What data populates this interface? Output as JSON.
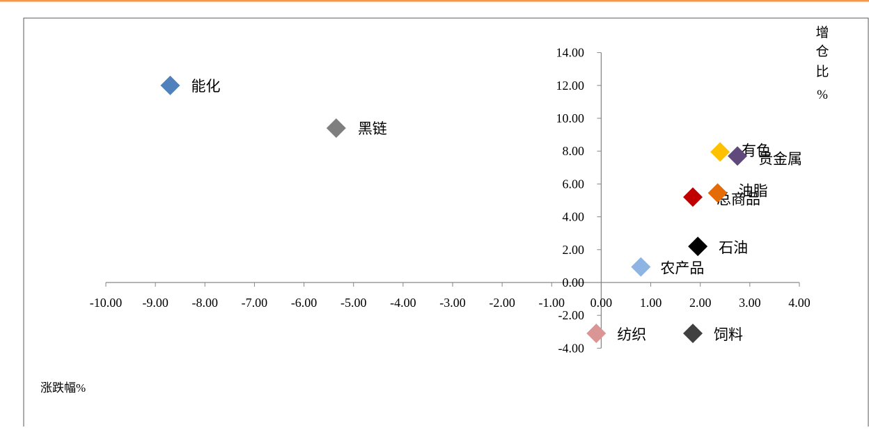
{
  "chart_data": {
    "type": "scatter",
    "title": "",
    "xlabel": "涨跌幅%",
    "ylabel": [
      "增",
      "仓",
      "比",
      "%"
    ],
    "xlim": [
      -10,
      4
    ],
    "ylim": [
      -4,
      14
    ],
    "x_ticks": [
      "-10.00",
      "-9.00",
      "-8.00",
      "-7.00",
      "-6.00",
      "-5.00",
      "-4.00",
      "-3.00",
      "-2.00",
      "-1.00",
      "0.00",
      "1.00",
      "2.00",
      "3.00",
      "4.00"
    ],
    "y_ticks": [
      "-4.00",
      "-2.00",
      "0.00",
      "2.00",
      "4.00",
      "6.00",
      "8.00",
      "10.00",
      "12.00",
      "14.00"
    ],
    "points": [
      {
        "name": "能化",
        "x": -8.7,
        "y": 12.0,
        "color": "#4F81BD"
      },
      {
        "name": "黑链",
        "x": -5.35,
        "y": 9.4,
        "color": "#7F7F7F"
      },
      {
        "name": "有色",
        "x": 2.4,
        "y": 7.95,
        "color": "#FFC000"
      },
      {
        "name": "贵金属",
        "x": 2.75,
        "y": 7.7,
        "color": "#604A7B"
      },
      {
        "name": "总商品",
        "x": 1.85,
        "y": 5.2,
        "color": "#C00000"
      },
      {
        "name": "油脂",
        "x": 2.35,
        "y": 5.45,
        "color": "#E36C09"
      },
      {
        "name": "石油",
        "x": 1.95,
        "y": 2.2,
        "color": "#000000"
      },
      {
        "name": "农产品",
        "x": 0.8,
        "y": 0.95,
        "color": "#8DB4E2"
      },
      {
        "name": "纺织",
        "x": -0.1,
        "y": -3.1,
        "color": "#D99694"
      },
      {
        "name": "饲料",
        "x": 1.85,
        "y": -3.1,
        "color": "#404040"
      }
    ],
    "grid": false,
    "legend": "none"
  },
  "colors": {
    "top_border": "#F79646",
    "axis": "#868686"
  }
}
